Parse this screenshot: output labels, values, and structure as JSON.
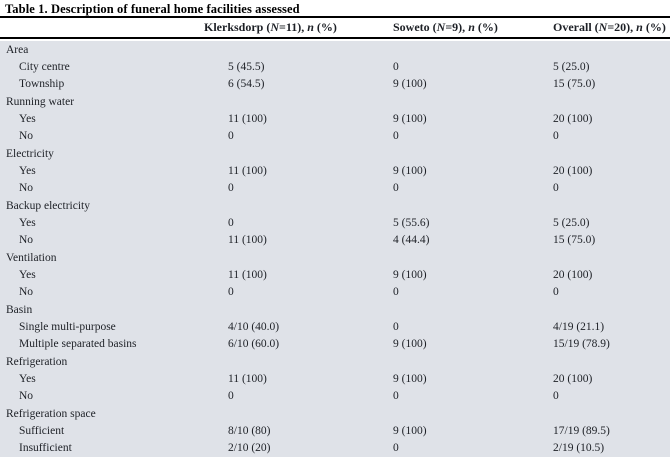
{
  "colors": {
    "body_background": "#dfe2e8",
    "header_background": "#ffffff",
    "rule": "#000000",
    "text": "#1d2026"
  },
  "table": {
    "title": "Table 1. Description of funeral home facilities assessed",
    "header": {
      "columns": [
        {
          "pre": "Klerksdorp (",
          "N": "N",
          "mid": "=11), ",
          "n": "n",
          "post": " (%)"
        },
        {
          "pre": "Soweto (",
          "N": "N",
          "mid": "=9), ",
          "n": "n",
          "post": " (%)"
        },
        {
          "pre": "Overall (",
          "N": "N",
          "mid": "=20), ",
          "n": "n",
          "post": " (%)"
        }
      ]
    },
    "rows": [
      {
        "label": "Area",
        "indent": false,
        "values": [
          "",
          "",
          ""
        ]
      },
      {
        "label": "City centre",
        "indent": true,
        "values": [
          "5 (45.5)",
          "0",
          "5 (25.0)"
        ]
      },
      {
        "label": "Township",
        "indent": true,
        "values": [
          "6 (54.5)",
          "9 (100)",
          "15 (75.0)"
        ]
      },
      {
        "label": "Running water",
        "indent": false,
        "values": [
          "",
          "",
          ""
        ]
      },
      {
        "label": "Yes",
        "indent": true,
        "values": [
          "11 (100)",
          "9 (100)",
          "20 (100)"
        ]
      },
      {
        "label": "No",
        "indent": true,
        "values": [
          "0",
          "0",
          "0"
        ]
      },
      {
        "label": "Electricity",
        "indent": false,
        "values": [
          "",
          "",
          ""
        ]
      },
      {
        "label": "Yes",
        "indent": true,
        "values": [
          "11 (100)",
          "9 (100)",
          "20 (100)"
        ]
      },
      {
        "label": "No",
        "indent": true,
        "values": [
          "0",
          "0",
          "0"
        ]
      },
      {
        "label": "Backup electricity",
        "indent": false,
        "values": [
          "",
          "",
          ""
        ]
      },
      {
        "label": "Yes",
        "indent": true,
        "values": [
          "0",
          "5 (55.6)",
          "5 (25.0)"
        ]
      },
      {
        "label": "No",
        "indent": true,
        "values": [
          "11 (100)",
          "4 (44.4)",
          "15 (75.0)"
        ]
      },
      {
        "label": "Ventilation",
        "indent": false,
        "values": [
          "",
          "",
          ""
        ]
      },
      {
        "label": "Yes",
        "indent": true,
        "values": [
          "11 (100)",
          "9 (100)",
          "20 (100)"
        ]
      },
      {
        "label": "No",
        "indent": true,
        "values": [
          "0",
          "0",
          "0"
        ]
      },
      {
        "label": "Basin",
        "indent": false,
        "values": [
          "",
          "",
          ""
        ]
      },
      {
        "label": "Single multi-purpose",
        "indent": true,
        "values": [
          "4/10 (40.0)",
          "0",
          "4/19 (21.1)"
        ]
      },
      {
        "label": "Multiple separated basins",
        "indent": true,
        "values": [
          "6/10 (60.0)",
          "9 (100)",
          "15/19 (78.9)"
        ]
      },
      {
        "label": "Refrigeration",
        "indent": false,
        "values": [
          "",
          "",
          ""
        ]
      },
      {
        "label": "Yes",
        "indent": true,
        "values": [
          "11 (100)",
          "9 (100)",
          "20 (100)"
        ]
      },
      {
        "label": "No",
        "indent": true,
        "values": [
          "0",
          "0",
          "0"
        ]
      },
      {
        "label": "Refrigeration space",
        "indent": false,
        "values": [
          "",
          "",
          ""
        ]
      },
      {
        "label": "Sufficient",
        "indent": true,
        "values": [
          "8/10 (80)",
          "9 (100)",
          "17/19 (89.5)"
        ]
      },
      {
        "label": "Insufficient",
        "indent": true,
        "values": [
          "2/10 (20)",
          "0",
          "2/19 (10.5)"
        ]
      }
    ]
  }
}
